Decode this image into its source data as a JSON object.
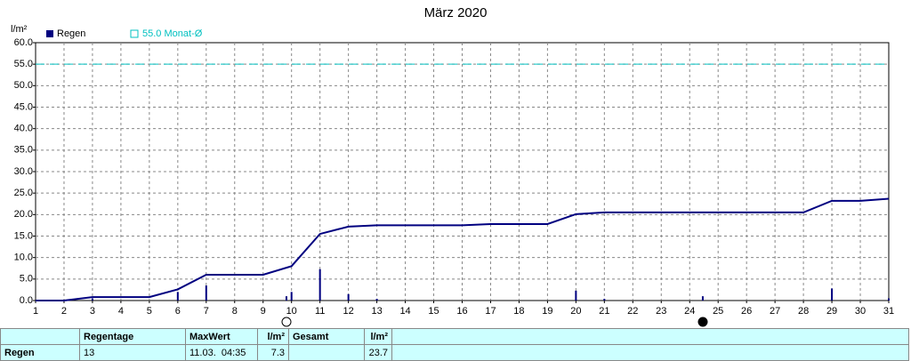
{
  "chart_data": {
    "type": "bar",
    "title": "März 2020",
    "y_unit": "l/m²",
    "xlim": [
      1,
      31
    ],
    "ylim": [
      0,
      60
    ],
    "xticks": [
      1,
      2,
      3,
      4,
      5,
      6,
      7,
      8,
      9,
      10,
      11,
      12,
      13,
      14,
      15,
      16,
      17,
      18,
      19,
      20,
      21,
      22,
      23,
      24,
      25,
      26,
      27,
      28,
      29,
      30,
      31
    ],
    "yticks": [
      {
        "value": 0,
        "label": "0.0"
      },
      {
        "value": 5,
        "label": "5.0"
      },
      {
        "value": 10,
        "label": "10.0"
      },
      {
        "value": 15,
        "label": "15.0"
      },
      {
        "value": 20,
        "label": "20.0"
      },
      {
        "value": 25,
        "label": "25.0"
      },
      {
        "value": 30,
        "label": "30.0"
      },
      {
        "value": 35,
        "label": "35.0"
      },
      {
        "value": 40,
        "label": "40.0"
      },
      {
        "value": 45,
        "label": "45.0"
      },
      {
        "value": 50,
        "label": "50.0"
      },
      {
        "value": 55,
        "label": "55.0"
      },
      {
        "value": 60,
        "label": "60.0"
      }
    ],
    "grid": true,
    "series": [
      {
        "name": "Regen",
        "color": "#000080",
        "x": [
          3,
          6,
          7,
          9.82,
          10,
          11,
          12,
          13,
          20,
          21,
          24.46,
          29,
          31
        ],
        "values": [
          0.5,
          2,
          3.5,
          1,
          2,
          7.3,
          1.5,
          0.4,
          2.3,
          0.4,
          1,
          2.8,
          0.5
        ]
      }
    ],
    "cumulative": {
      "color": "#000080",
      "x": [
        1,
        2,
        3,
        4,
        5,
        6,
        7,
        8,
        9,
        10,
        11,
        12,
        13,
        14,
        15,
        16,
        17,
        18,
        19,
        20,
        21,
        22,
        23,
        24,
        25,
        26,
        27,
        28,
        29,
        30,
        31
      ],
      "values": [
        0,
        0,
        0.8,
        0.8,
        0.8,
        2.6,
        6,
        6,
        6,
        8,
        15.5,
        17.2,
        17.5,
        17.5,
        17.5,
        17.5,
        17.8,
        17.8,
        17.8,
        20.1,
        20.5,
        20.5,
        20.5,
        20.5,
        20.5,
        20.5,
        20.5,
        20.5,
        23.2,
        23.2,
        23.7
      ]
    },
    "average": {
      "value": 55,
      "label": "55.0 Monat-Ø",
      "color": "#00c0c0"
    }
  },
  "footer": {
    "row_label": "Regen",
    "headers": [
      "Regentage",
      "MaxWert",
      "l/m²",
      "Gesamt",
      "l/m²"
    ],
    "values": [
      13,
      "11.03.  04:35",
      7.3,
      "",
      23.7
    ]
  }
}
